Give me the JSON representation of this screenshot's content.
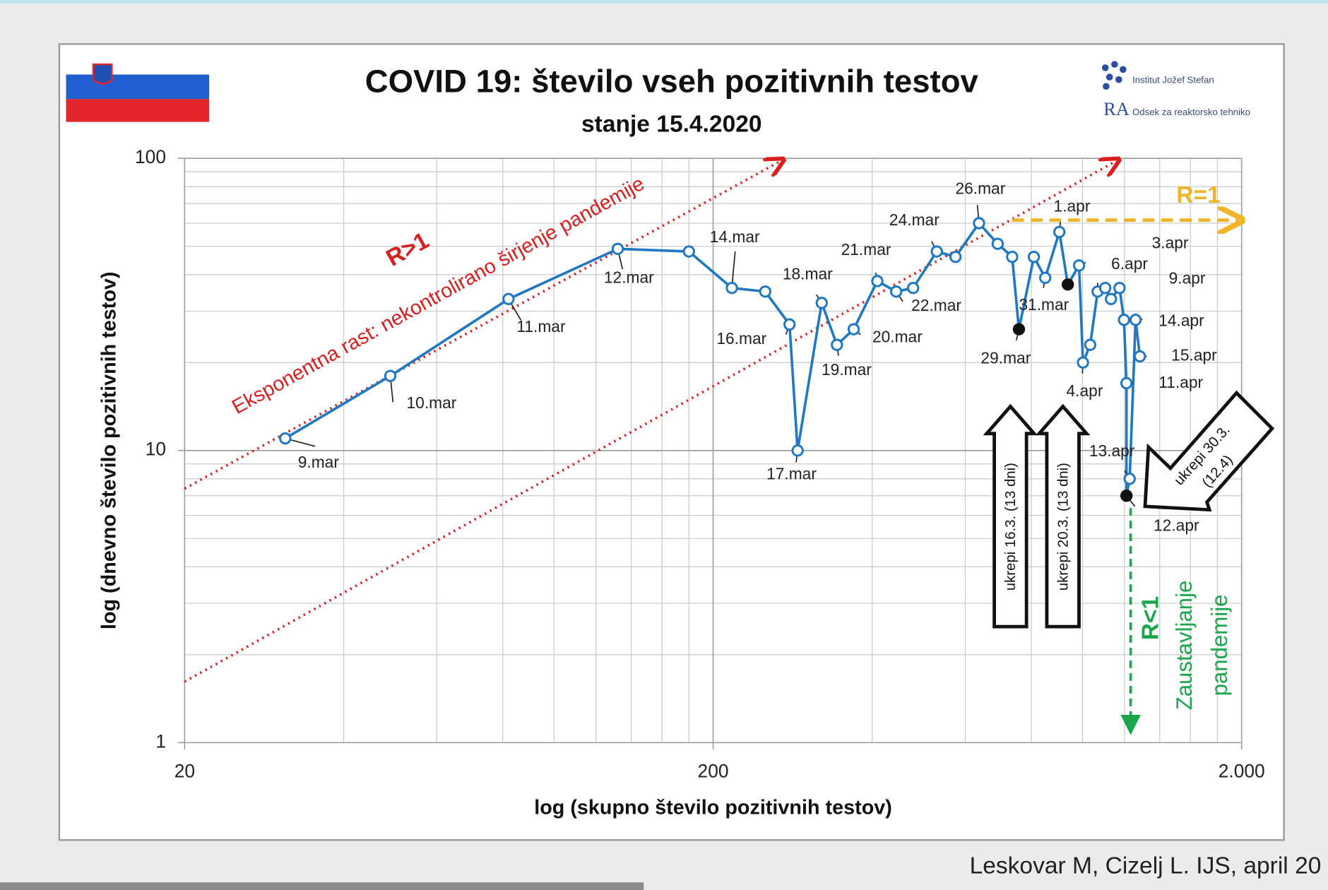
{
  "chart_data": {
    "type": "line",
    "title": "COVID 19: število vseh pozitivnih testov",
    "subtitle": "stanje 15.4.2020",
    "x_label": "log (skupno število pozitivnih testov)",
    "y_label": "log (dnevno število pozitivnih testov)",
    "log_x": true,
    "log_y": true,
    "grid": true,
    "xlim": [
      20,
      2000
    ],
    "ylim": [
      1,
      100
    ],
    "xticks": [
      20,
      200,
      {
        "value": 2000,
        "label": "2.000"
      }
    ],
    "yticks": [
      1,
      10,
      100
    ],
    "x_minor_ticks": [
      40,
      60,
      80,
      100,
      120,
      140,
      160,
      180,
      400,
      600,
      800,
      1000,
      1200,
      1400,
      1600,
      1800
    ],
    "y_minor_ticks": [
      2,
      3,
      4,
      5,
      6,
      7,
      8,
      9,
      20,
      30,
      40,
      50,
      60,
      70,
      80,
      90
    ],
    "x": [
      31,
      49,
      82,
      132,
      180,
      217,
      251,
      279,
      289,
      321,
      343,
      369,
      409,
      444,
      478,
      530,
      575,
      637,
      691,
      736,
      758,
      809,
      850,
      904,
      938,
      985,
      1002,
      1034,
      1068,
      1104,
      1132,
      1175,
      1198,
      1211,
      1211,
      1228,
      1260,
      1284
    ],
    "series": [
      {
        "color": "#1f78c1",
        "values": [
          11,
          18,
          33,
          49,
          48,
          36,
          35,
          27,
          10,
          32,
          23,
          26,
          38,
          35,
          36,
          48,
          46,
          60,
          51,
          46,
          26,
          46,
          39,
          56,
          37,
          43,
          20,
          23,
          35,
          36,
          33,
          36,
          28,
          17,
          7,
          8,
          28,
          21
        ]
      }
    ],
    "filled_markers": [
      20,
      24,
      34
    ],
    "point_labels": [
      "9.mar",
      "10.mar",
      "11.mar",
      "12.mar",
      null,
      "14.mar",
      null,
      "16.mar",
      "17.mar",
      "18.mar",
      "19.mar",
      "20.mar",
      "21.mar",
      "22.mar",
      null,
      "24.mar",
      null,
      "26.mar",
      null,
      null,
      "29.mar",
      null,
      "31.mar",
      "1.apr",
      null,
      "3.apr",
      "4.apr",
      null,
      "6.apr",
      null,
      null,
      "9.apr",
      null,
      "11.apr",
      "12.apr",
      "13.apr",
      "14.apr",
      "15.apr"
    ],
    "annotations": {
      "r_gt_1": "R>1",
      "exponential": "Eksponentna rast: nekontrolirano širjenje pandemije",
      "r_eq_1": "R=1",
      "r_lt_1": "R<1",
      "stopping": [
        "Zaustavljanje",
        "pandemije"
      ],
      "measures_1": "ukrepi 16.3. (13 dni)",
      "measures_2": "ukrepi 20.3. (13 dni)",
      "measures_3": [
        "ukrepi 30.3.",
        "(12.4)"
      ]
    }
  },
  "logo": {
    "institute": "Institut Jožef Stefan",
    "mark": "RA",
    "department": "Odsek za reaktorsko tehniko"
  },
  "footer": "Leskovar M, Cizelj L. IJS, april 20"
}
